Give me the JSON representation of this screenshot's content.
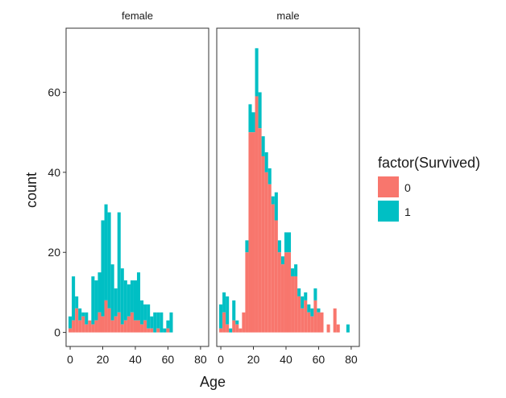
{
  "chart_data": {
    "type": "histogram-faceted-stacked",
    "xlabel": "Age",
    "ylabel": "count",
    "xlim": [
      -2.5,
      85
    ],
    "ylim": [
      -3.5,
      76
    ],
    "x_ticks": [
      0,
      20,
      40,
      60,
      80
    ],
    "y_ticks": [
      0,
      20,
      40,
      60
    ],
    "bin_width": 2,
    "legend": {
      "title": "factor(Survived)",
      "position": "right",
      "entries": [
        {
          "label": "0",
          "color": "#F8766D"
        },
        {
          "label": "1",
          "color": "#00BFC4"
        }
      ]
    },
    "facets": [
      {
        "strip": "female",
        "bins": [
          {
            "x": 0,
            "s0": 1,
            "s1": 3
          },
          {
            "x": 2,
            "s0": 3,
            "s1": 11
          },
          {
            "x": 4,
            "s0": 6,
            "s1": 3
          },
          {
            "x": 6,
            "s0": 3,
            "s1": 3
          },
          {
            "x": 8,
            "s0": 4,
            "s1": 1
          },
          {
            "x": 10,
            "s0": 2,
            "s1": 3
          },
          {
            "x": 12,
            "s0": 3,
            "s1": 0
          },
          {
            "x": 14,
            "s0": 2,
            "s1": 12
          },
          {
            "x": 16,
            "s0": 3,
            "s1": 10
          },
          {
            "x": 18,
            "s0": 5,
            "s1": 10
          },
          {
            "x": 20,
            "s0": 4,
            "s1": 24
          },
          {
            "x": 22,
            "s0": 8,
            "s1": 24
          },
          {
            "x": 24,
            "s0": 6,
            "s1": 24
          },
          {
            "x": 26,
            "s0": 3,
            "s1": 14
          },
          {
            "x": 28,
            "s0": 4,
            "s1": 7
          },
          {
            "x": 30,
            "s0": 5,
            "s1": 25
          },
          {
            "x": 32,
            "s0": 2,
            "s1": 14
          },
          {
            "x": 34,
            "s0": 3,
            "s1": 10
          },
          {
            "x": 36,
            "s0": 4,
            "s1": 8
          },
          {
            "x": 38,
            "s0": 5,
            "s1": 8
          },
          {
            "x": 40,
            "s0": 3,
            "s1": 10
          },
          {
            "x": 42,
            "s0": 3,
            "s1": 12
          },
          {
            "x": 44,
            "s0": 2,
            "s1": 6
          },
          {
            "x": 46,
            "s0": 3,
            "s1": 4
          },
          {
            "x": 48,
            "s0": 1,
            "s1": 6
          },
          {
            "x": 50,
            "s0": 1,
            "s1": 3
          },
          {
            "x": 52,
            "s0": 0,
            "s1": 5
          },
          {
            "x": 54,
            "s0": 1,
            "s1": 4
          },
          {
            "x": 56,
            "s0": 0,
            "s1": 5
          },
          {
            "x": 58,
            "s0": 0,
            "s1": 1
          },
          {
            "x": 60,
            "s0": 1,
            "s1": 2
          },
          {
            "x": 62,
            "s0": 0,
            "s1": 5
          }
        ]
      },
      {
        "strip": "male",
        "bins": [
          {
            "x": 0,
            "s0": 1,
            "s1": 6
          },
          {
            "x": 2,
            "s0": 5,
            "s1": 5
          },
          {
            "x": 4,
            "s0": 2,
            "s1": 7
          },
          {
            "x": 6,
            "s0": 0,
            "s1": 1
          },
          {
            "x": 8,
            "s0": 3,
            "s1": 5
          },
          {
            "x": 10,
            "s0": 2,
            "s1": 1
          },
          {
            "x": 12,
            "s0": 1,
            "s1": 0
          },
          {
            "x": 14,
            "s0": 5,
            "s1": 0
          },
          {
            "x": 16,
            "s0": 20,
            "s1": 3
          },
          {
            "x": 18,
            "s0": 50,
            "s1": 7
          },
          {
            "x": 20,
            "s0": 50,
            "s1": 5
          },
          {
            "x": 22,
            "s0": 59,
            "s1": 12
          },
          {
            "x": 24,
            "s0": 51,
            "s1": 9
          },
          {
            "x": 26,
            "s0": 44,
            "s1": 5
          },
          {
            "x": 28,
            "s0": 40,
            "s1": 5
          },
          {
            "x": 30,
            "s0": 37,
            "s1": 4
          },
          {
            "x": 32,
            "s0": 32,
            "s1": 2
          },
          {
            "x": 34,
            "s0": 28,
            "s1": 7
          },
          {
            "x": 36,
            "s0": 20,
            "s1": 3
          },
          {
            "x": 38,
            "s0": 17,
            "s1": 2
          },
          {
            "x": 40,
            "s0": 20,
            "s1": 5
          },
          {
            "x": 42,
            "s0": 20,
            "s1": 5
          },
          {
            "x": 44,
            "s0": 14,
            "s1": 2
          },
          {
            "x": 46,
            "s0": 14,
            "s1": 3
          },
          {
            "x": 48,
            "s0": 9,
            "s1": 2
          },
          {
            "x": 50,
            "s0": 6,
            "s1": 3
          },
          {
            "x": 52,
            "s0": 8,
            "s1": 2
          },
          {
            "x": 54,
            "s0": 5,
            "s1": 2
          },
          {
            "x": 56,
            "s0": 4,
            "s1": 2
          },
          {
            "x": 58,
            "s0": 8,
            "s1": 3
          },
          {
            "x": 60,
            "s0": 5,
            "s1": 1
          },
          {
            "x": 62,
            "s0": 5,
            "s1": 0
          },
          {
            "x": 64,
            "s0": 0,
            "s1": 0
          },
          {
            "x": 66,
            "s0": 2,
            "s1": 0
          },
          {
            "x": 68,
            "s0": 0,
            "s1": 0
          },
          {
            "x": 70,
            "s0": 6,
            "s1": 0
          },
          {
            "x": 72,
            "s0": 2,
            "s1": 0
          },
          {
            "x": 74,
            "s0": 0,
            "s1": 0
          },
          {
            "x": 76,
            "s0": 0,
            "s1": 0
          },
          {
            "x": 78,
            "s0": 0,
            "s1": 2
          }
        ]
      }
    ]
  }
}
